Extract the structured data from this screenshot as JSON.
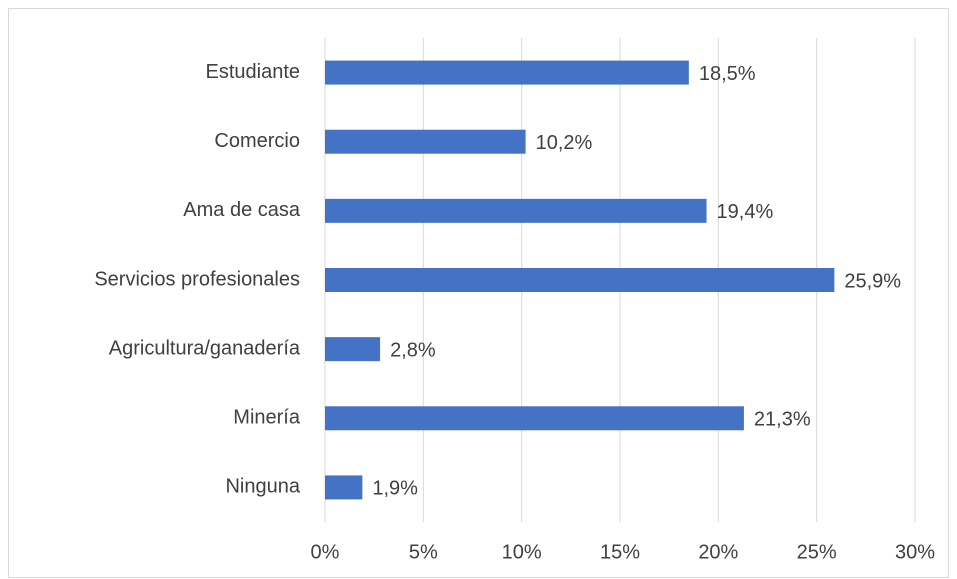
{
  "chart_data": {
    "type": "hbar",
    "categories": [
      "Estudiante",
      "Comercio",
      "Ama de casa",
      "Servicios profesionales",
      "Agricultura/ganadería",
      "Minería",
      "Ninguna"
    ],
    "values": [
      18.5,
      10.2,
      19.4,
      25.9,
      2.8,
      21.3,
      1.9
    ],
    "value_labels": [
      "18,5%",
      "10,2%",
      "19,4%",
      "25,9%",
      "2,8%",
      "21,3%",
      "1,9%"
    ],
    "color": "#4472c4",
    "xlim": [
      0,
      30
    ],
    "xticks": [
      {
        "value": 0,
        "label": "0%"
      },
      {
        "value": 5,
        "label": "5%"
      },
      {
        "value": 10,
        "label": "10%"
      },
      {
        "value": 15,
        "label": "15%"
      },
      {
        "value": 20,
        "label": "20%"
      },
      {
        "value": 25,
        "label": "25%"
      },
      {
        "value": 30,
        "label": "30%"
      }
    ],
    "grid": true
  }
}
